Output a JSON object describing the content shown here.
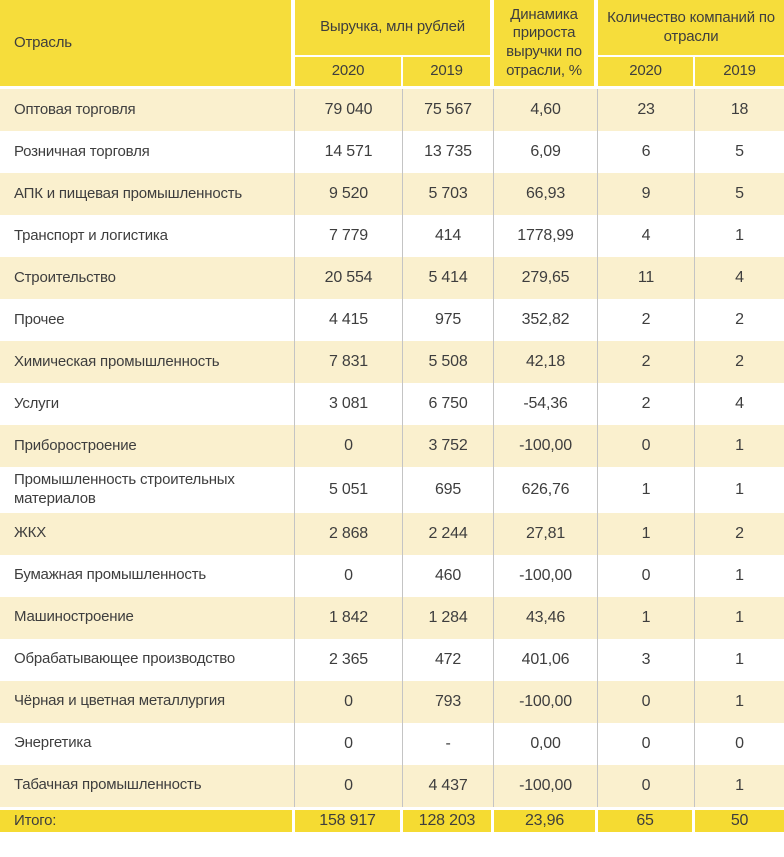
{
  "colors": {
    "header_yellow": "#F6DD3B",
    "total_row_yellow": "#F5DB32",
    "row_cream": "#FAF0CE",
    "row_white": "#FFFFFF",
    "text": "#3E3E3E",
    "column_separator": "#C4C4C4"
  },
  "chart_data": {
    "type": "table",
    "title": "",
    "header": {
      "industry": "Отрасль",
      "revenue_group": "Выручка, млн рублей",
      "dynamics": "Динамика прироста выручки по отрасли, %",
      "companies_group": "Количество компаний по отрасли",
      "revenue_2020": "2020",
      "revenue_2019": "2019",
      "companies_2020": "2020",
      "companies_2019": "2019"
    },
    "rows": [
      {
        "industry": "Оптовая торговля",
        "revenue_2020": "79 040",
        "revenue_2019": "75 567",
        "dynamics": "4,60",
        "companies_2020": "23",
        "companies_2019": "18"
      },
      {
        "industry": "Розничная торговля",
        "revenue_2020": "14 571",
        "revenue_2019": "13 735",
        "dynamics": "6,09",
        "companies_2020": "6",
        "companies_2019": "5"
      },
      {
        "industry": "АПК и пищевая промышленность",
        "revenue_2020": "9 520",
        "revenue_2019": "5 703",
        "dynamics": "66,93",
        "companies_2020": "9",
        "companies_2019": "5"
      },
      {
        "industry": "Транспорт и логистика",
        "revenue_2020": "7 779",
        "revenue_2019": "414",
        "dynamics": "1778,99",
        "companies_2020": "4",
        "companies_2019": "1"
      },
      {
        "industry": "Строительство",
        "revenue_2020": "20 554",
        "revenue_2019": "5 414",
        "dynamics": "279,65",
        "companies_2020": "11",
        "companies_2019": "4"
      },
      {
        "industry": "Прочее",
        "revenue_2020": "4 415",
        "revenue_2019": "975",
        "dynamics": "352,82",
        "companies_2020": "2",
        "companies_2019": "2"
      },
      {
        "industry": "Химическая промышленность",
        "revenue_2020": "7 831",
        "revenue_2019": "5 508",
        "dynamics": "42,18",
        "companies_2020": "2",
        "companies_2019": "2"
      },
      {
        "industry": "Услуги",
        "revenue_2020": "3 081",
        "revenue_2019": "6 750",
        "dynamics": "-54,36",
        "companies_2020": "2",
        "companies_2019": "4"
      },
      {
        "industry": "Приборостроение",
        "revenue_2020": "0",
        "revenue_2019": "3 752",
        "dynamics": "-100,00",
        "companies_2020": "0",
        "companies_2019": "1"
      },
      {
        "industry": "Промышленность строительных материалов",
        "revenue_2020": "5 051",
        "revenue_2019": "695",
        "dynamics": "626,76",
        "companies_2020": "1",
        "companies_2019": "1"
      },
      {
        "industry": "ЖКХ",
        "revenue_2020": "2 868",
        "revenue_2019": "2 244",
        "dynamics": "27,81",
        "companies_2020": "1",
        "companies_2019": "2"
      },
      {
        "industry": "Бумажная промышленность",
        "revenue_2020": "0",
        "revenue_2019": "460",
        "dynamics": "-100,00",
        "companies_2020": "0",
        "companies_2019": "1"
      },
      {
        "industry": "Машиностроение",
        "revenue_2020": "1 842",
        "revenue_2019": "1 284",
        "dynamics": "43,46",
        "companies_2020": "1",
        "companies_2019": "1"
      },
      {
        "industry": "Обрабатывающее производство",
        "revenue_2020": "2 365",
        "revenue_2019": "472",
        "dynamics": "401,06",
        "companies_2020": "3",
        "companies_2019": "1"
      },
      {
        "industry": "Чёрная и цветная металлургия",
        "revenue_2020": "0",
        "revenue_2019": "793",
        "dynamics": "-100,00",
        "companies_2020": "0",
        "companies_2019": "1"
      },
      {
        "industry": "Энергетика",
        "revenue_2020": "0",
        "revenue_2019": "-",
        "dynamics": "0,00",
        "companies_2020": "0",
        "companies_2019": "0"
      },
      {
        "industry": "Табачная промышленность",
        "revenue_2020": "0",
        "revenue_2019": "4 437",
        "dynamics": "-100,00",
        "companies_2020": "0",
        "companies_2019": "1"
      }
    ],
    "total": {
      "label": "Итого:",
      "revenue_2020": "158 917",
      "revenue_2019": "128 203",
      "dynamics": "23,96",
      "companies_2020": "65",
      "companies_2019": "50"
    }
  }
}
